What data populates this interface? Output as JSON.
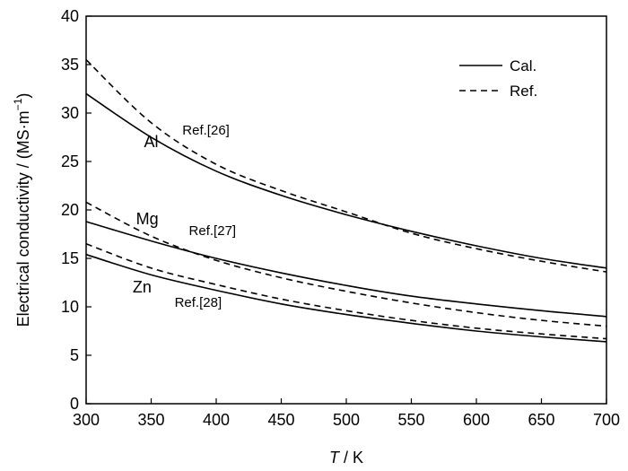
{
  "chart_data": {
    "type": "line",
    "xlabel_italic": "T",
    "xlabel_rest": " / K",
    "ylabel": "Electrical conductivity / (MS·m",
    "ylabel_sup": "−1",
    "ylabel_close": ")",
    "xlim": [
      300,
      700
    ],
    "ylim": [
      0,
      40
    ],
    "xticks": [
      300,
      350,
      400,
      450,
      500,
      550,
      600,
      650,
      700
    ],
    "yticks": [
      0,
      5,
      10,
      15,
      20,
      25,
      30,
      35,
      40
    ],
    "grid": false,
    "legend_position": "top-right",
    "legend": [
      {
        "label": "Cal.",
        "style": "solid"
      },
      {
        "label": "Ref.",
        "style": "dashed"
      }
    ],
    "x": [
      300,
      350,
      400,
      450,
      500,
      550,
      600,
      650,
      700
    ],
    "series": [
      {
        "metal": "Al",
        "style": "solid",
        "values": [
          32.0,
          27.5,
          24.0,
          21.5,
          19.5,
          17.8,
          16.3,
          15.0,
          14.0
        ]
      },
      {
        "metal": "Al",
        "style": "dashed",
        "values": [
          35.5,
          29.0,
          24.7,
          22.0,
          19.8,
          17.6,
          16.0,
          14.7,
          13.6
        ]
      },
      {
        "metal": "Mg",
        "style": "solid",
        "values": [
          18.8,
          16.8,
          15.0,
          13.5,
          12.2,
          11.1,
          10.3,
          9.6,
          9.0
        ]
      },
      {
        "metal": "Mg",
        "style": "dashed",
        "values": [
          20.8,
          17.3,
          14.8,
          13.0,
          11.6,
          10.4,
          9.4,
          8.6,
          8.0
        ]
      },
      {
        "metal": "Zn",
        "style": "solid",
        "values": [
          15.4,
          13.3,
          11.7,
          10.3,
          9.2,
          8.3,
          7.5,
          6.9,
          6.4
        ]
      },
      {
        "metal": "Zn",
        "style": "dashed",
        "values": [
          16.5,
          14.0,
          12.3,
          10.8,
          9.6,
          8.6,
          7.8,
          7.2,
          6.7
        ]
      }
    ],
    "annotations": {
      "metal_labels": [
        {
          "text": "Al",
          "x": 350,
          "y": 26.5
        },
        {
          "text": "Mg",
          "x": 347,
          "y": 18.5
        },
        {
          "text": "Zn",
          "x": 343,
          "y": 11.5
        }
      ],
      "ref_labels": [
        {
          "text": "Ref.[26]",
          "x": 374,
          "y": 27.8
        },
        {
          "text": "Ref.[27]",
          "x": 379,
          "y": 17.4
        },
        {
          "text": "Ref.[28]",
          "x": 368,
          "y": 10.0
        }
      ]
    }
  }
}
